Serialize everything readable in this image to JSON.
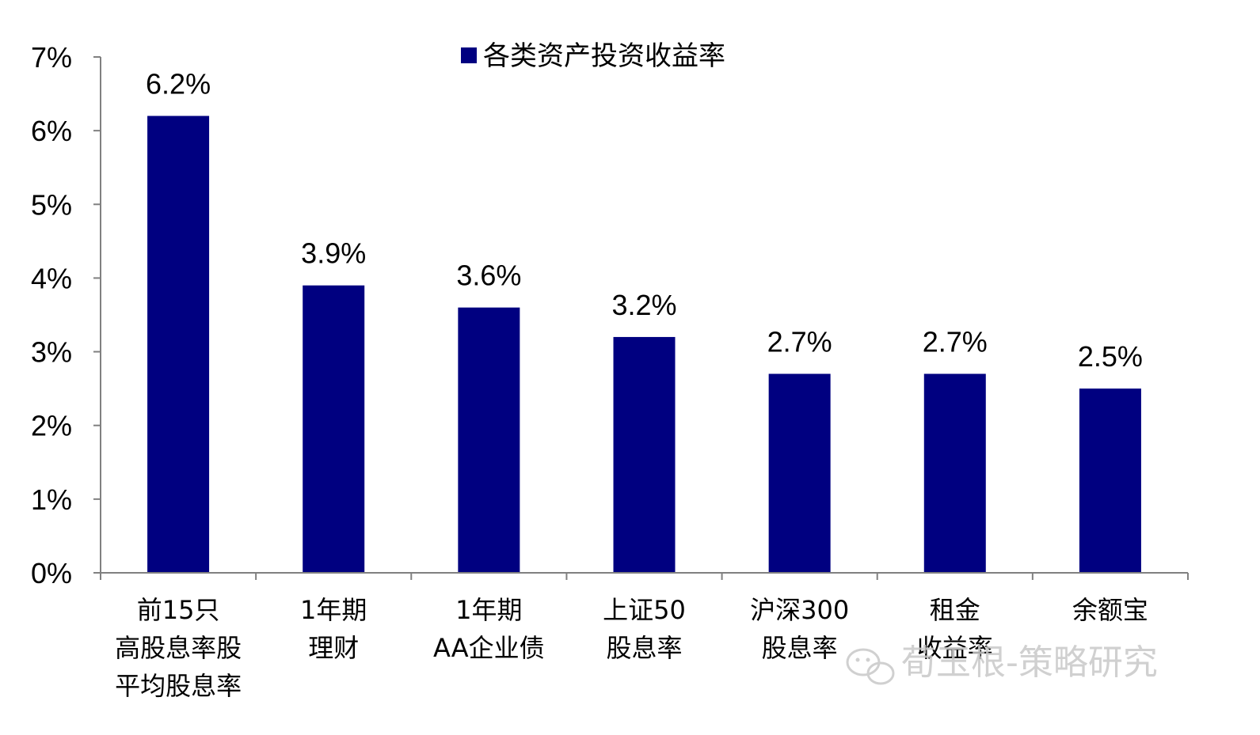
{
  "chart_data": {
    "type": "bar",
    "legend": {
      "label": "各类资产投资收益率",
      "position": "top-center"
    },
    "colors": {
      "bar": "#000080",
      "axis": "#808080",
      "watermark": "#c8c8c8"
    },
    "ylim": [
      0,
      7
    ],
    "yticks": [
      "0%",
      "1%",
      "2%",
      "3%",
      "4%",
      "5%",
      "6%",
      "7%"
    ],
    "grid": false,
    "categories": [
      [
        "前15只",
        "高股息率股",
        "平均股息率"
      ],
      [
        "1年期",
        "理财"
      ],
      [
        "1年期",
        "AA企业债"
      ],
      [
        "上证50",
        "股息率"
      ],
      [
        "沪深300",
        "股息率"
      ],
      [
        "租金",
        "收益率"
      ],
      [
        "余额宝"
      ]
    ],
    "values": [
      6.2,
      3.9,
      3.6,
      3.2,
      2.7,
      2.7,
      2.5
    ],
    "data_labels": [
      "6.2%",
      "3.9%",
      "3.6%",
      "3.2%",
      "2.7%",
      "2.7%",
      "2.5%"
    ]
  },
  "watermark": {
    "text": "荀玉根-策略研究",
    "icon": "wechat-icon"
  }
}
